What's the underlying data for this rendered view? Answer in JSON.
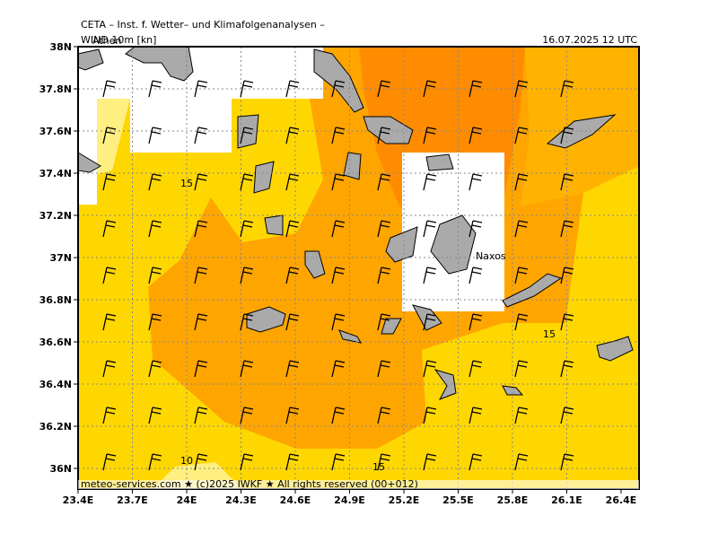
{
  "header": {
    "title": "CETA – Inst. f. Wetter– und Klimafolgenanalysen –",
    "variable": "WIND 10m [kn]",
    "time": "16.07.2025 12 UTC"
  },
  "footer": "meteo-services.com ★ (c)2025 IWKF ★ All rights reserved (00+012)",
  "lon_labels": [
    "23.4E",
    "23.7E",
    "24E",
    "24.3E",
    "24.6E",
    "24.9E",
    "25.2E",
    "25.5E",
    "25.8E",
    "26.1E",
    "26.4E"
  ],
  "lat_labels": [
    "38N",
    "37.8N",
    "37.6N",
    "37.4N",
    "37.2N",
    "37N",
    "36.8N",
    "36.6N",
    "36.4N",
    "36.2N",
    "36N"
  ],
  "places": [
    "Athen",
    "Naxos"
  ],
  "contour_labels": [
    "15",
    "15",
    "15",
    "10"
  ]
}
